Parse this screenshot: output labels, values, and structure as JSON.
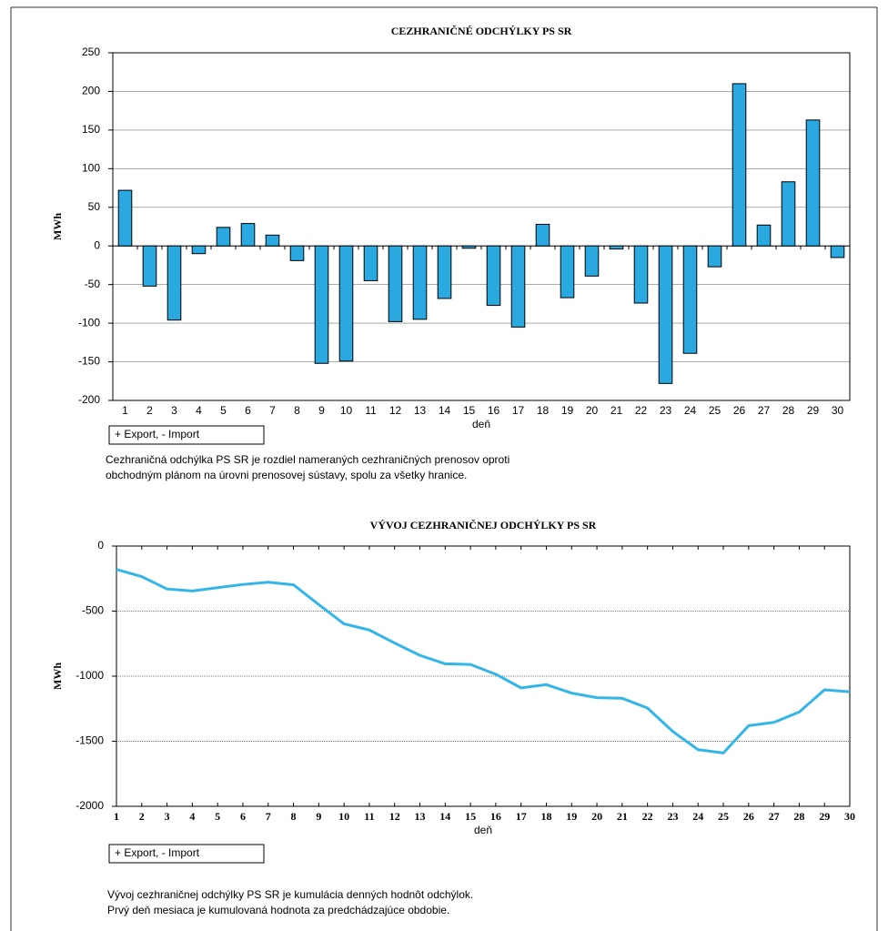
{
  "chart_data": [
    {
      "type": "bar",
      "title": "CEZHRANIČNÉ  ODCHÝLKY  PS  SR",
      "y_label": "MWh",
      "x_label": "deň",
      "note": "+ Export, - Import",
      "caption": [
        "Cezhraničná odchýlka PS SR je rozdiel nameraných cezhraničných prenosov oproti",
        "obchodným plánom na úrovni prenosovej sústavy, spolu za všetky hranice."
      ],
      "categories": [
        "1",
        "2",
        "3",
        "4",
        "5",
        "6",
        "7",
        "8",
        "9",
        "10",
        "11",
        "12",
        "13",
        "14",
        "15",
        "16",
        "17",
        "18",
        "19",
        "20",
        "21",
        "22",
        "23",
        "24",
        "25",
        "26",
        "27",
        "28",
        "29",
        "30"
      ],
      "values": [
        72,
        -52,
        -96,
        -10,
        24,
        29,
        14,
        -19,
        -152,
        -149,
        -45,
        -98,
        -95,
        -68,
        -3,
        -77,
        -105,
        28,
        -67,
        -39,
        -4,
        -74,
        -178,
        -139,
        -27,
        210,
        27,
        83,
        163,
        -15
      ],
      "color": "#29a9e0",
      "ylim": [
        -200,
        250
      ],
      "yticks": [
        -200,
        -150,
        -100,
        -50,
        0,
        50,
        100,
        150,
        200,
        250
      ],
      "grid": true
    },
    {
      "type": "line",
      "title": "VÝVOJ  CEZHRANIČNEJ  ODCHÝLKY  PS  SR",
      "y_label": "MWh",
      "x_label": "deň",
      "note": "+ Export, - Import",
      "caption": [
        "Vývoj cezhraničnej odchýlky PS SR je kumulácia denných hodnôt odchýlok.",
        "Prvý deň mesiaca je kumulovaná hodnota za predchádzajúce obdobie."
      ],
      "x": [
        1,
        2,
        3,
        4,
        5,
        6,
        7,
        8,
        9,
        10,
        11,
        12,
        13,
        14,
        15,
        16,
        17,
        18,
        19,
        20,
        21,
        22,
        23,
        24,
        25,
        26,
        27,
        28,
        29,
        30
      ],
      "values": [
        -180,
        -235,
        -330,
        -345,
        -320,
        -295,
        -278,
        -298,
        -450,
        -598,
        -645,
        -745,
        -840,
        -905,
        -910,
        -985,
        -1090,
        -1065,
        -1130,
        -1165,
        -1170,
        -1245,
        -1425,
        -1565,
        -1590,
        -1380,
        -1355,
        -1275,
        -1105,
        -1120
      ],
      "color": "#33b5e8",
      "xlim": [
        1,
        30
      ],
      "xticks": [
        1,
        2,
        3,
        4,
        5,
        6,
        7,
        8,
        9,
        10,
        11,
        12,
        13,
        14,
        15,
        16,
        17,
        18,
        19,
        20,
        21,
        22,
        23,
        24,
        25,
        26,
        27,
        28,
        29,
        30
      ],
      "ylim": [
        -2000,
        0
      ],
      "yticks": [
        -2000,
        -1500,
        -1000,
        -500,
        0
      ],
      "grid": true
    }
  ]
}
